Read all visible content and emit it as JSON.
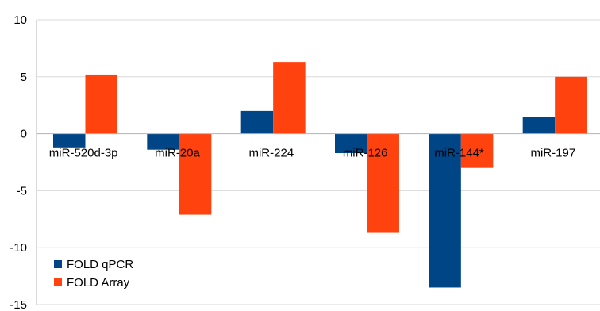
{
  "chart_data": {
    "type": "bar",
    "categories": [
      "miR-520d-3p",
      "miR-20a",
      "miR-224",
      "miR-126",
      "miR-144*",
      "miR-197"
    ],
    "series": [
      {
        "name": "FOLD qPCR",
        "color": "#004586",
        "values": [
          -1.2,
          -1.4,
          2.0,
          -1.7,
          -13.5,
          1.5
        ]
      },
      {
        "name": "FOLD Array",
        "color": "#ff420e",
        "values": [
          5.2,
          -7.1,
          6.3,
          -8.7,
          -3.0,
          5.0
        ]
      }
    ],
    "yticks": [
      10,
      5,
      0,
      -5,
      -10,
      -15
    ],
    "ylim": [
      -15,
      10
    ],
    "grid": true,
    "legend_position": "bottom-left"
  }
}
